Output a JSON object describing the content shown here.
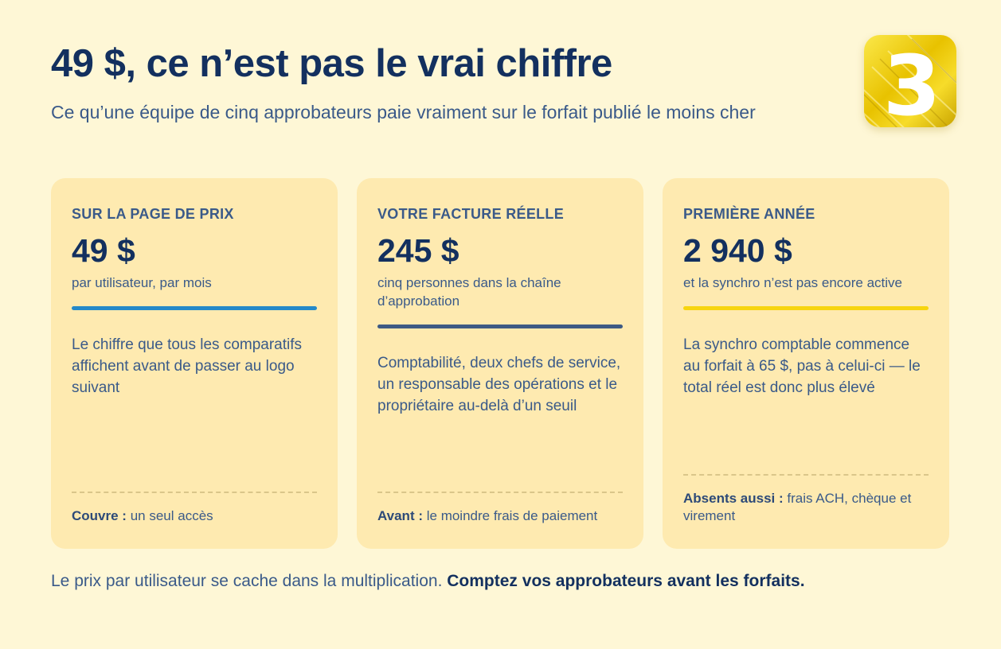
{
  "header": {
    "title": "49 $, ce n’est pas le vrai chiffre",
    "subtitle": "Ce qu’une équipe de cinq approbateurs paie vraiment sur le forfait publié le moins cher"
  },
  "logo": {
    "glyph": "3",
    "icon": "brand-logo-icon",
    "colors": [
      "#f7d50f",
      "#ffffff"
    ]
  },
  "cards": [
    {
      "label": "SUR LA PAGE DE PRIX",
      "amount": "49 $",
      "caption": "par utilisateur, par mois",
      "bar_color": "#2489c9",
      "body": "Le chiffre que tous les comparatifs affichent avant de passer au logo suivant",
      "foot_key": "Couvre :",
      "foot_text": "un seul accès"
    },
    {
      "label": "VOTRE FACTURE RÉELLE",
      "amount": "245 $",
      "caption": "cinq personnes dans la chaîne d’approbation",
      "bar_color": "#3d5a84",
      "body": "Comptabilité, deux chefs de service, un responsable des opérations et le propriétaire au-delà d’un seuil",
      "foot_key": "Avant :",
      "foot_text": "le moindre frais de paiement"
    },
    {
      "label": "PREMIÈRE ANNÉE",
      "amount": "2 940 $",
      "caption": "et la synchro n’est pas encore active",
      "bar_color": "#f7d50f",
      "body": "La synchro comptable commence au forfait à 65 $, pas à celui-ci — le total réel est donc plus élevé",
      "foot_key": "Absents aussi :",
      "foot_text": "frais ACH, chèque et virement"
    }
  ],
  "footer": {
    "text": "Le prix par utilisateur se cache dans la multiplication.",
    "emphasis": "Comptez vos approbateurs avant les forfaits."
  },
  "colors": {
    "background": "#fef7d6",
    "card": "#feeab0",
    "heading": "#13305f",
    "text": "#3a5a89"
  }
}
